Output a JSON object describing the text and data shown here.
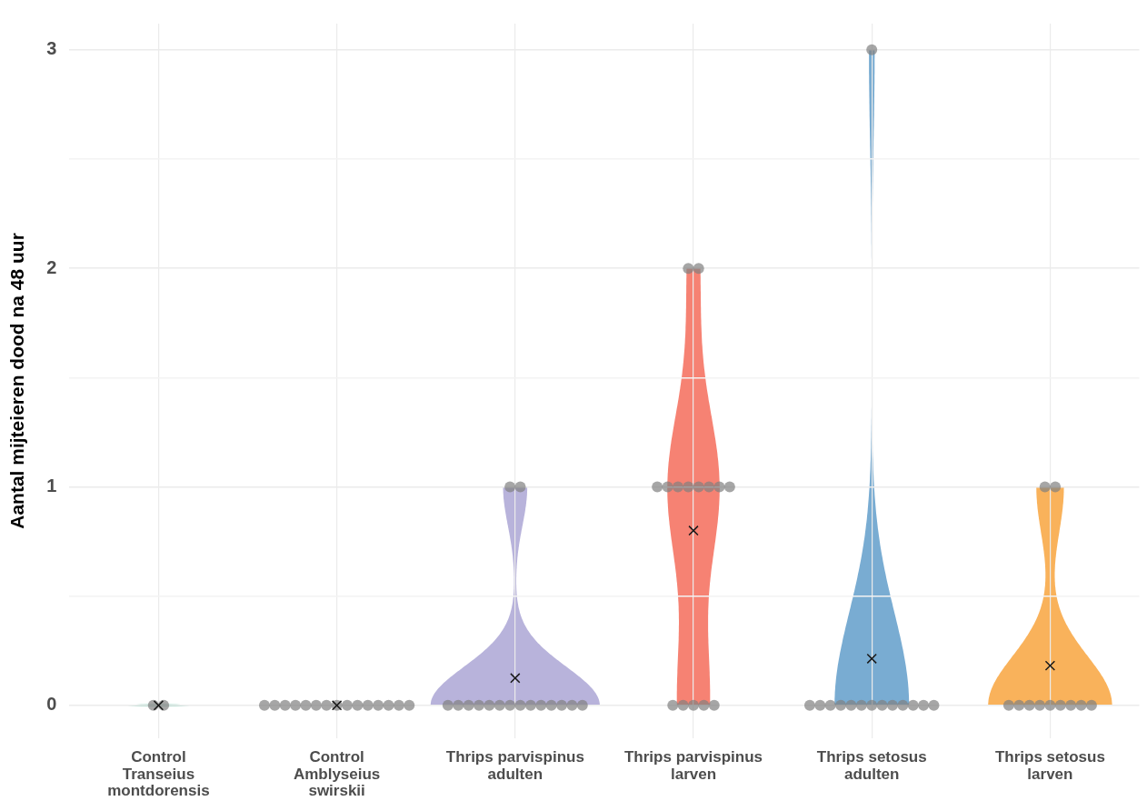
{
  "chart_data": {
    "type": "scatter",
    "ylabel": "Aantal mijteieren dood na 48 uur",
    "categories": [
      "Control\nTranseius\nmontdorensis",
      "Control\nAmblyseius\nswirskii",
      "Thrips parvispinus\nadulten",
      "Thrips parvispinus\nlarven",
      "Thrips setosus\nadulten",
      "Thrips setosus\nlarven"
    ],
    "colors": [
      "#66c2a5",
      null,
      "#b4afd9",
      "#f67b6b",
      "#72a8d0",
      "#f9ae52"
    ],
    "ylim": [
      -0.15,
      3.12
    ],
    "yticks": [
      0,
      {
        "value": 0.5,
        "label": null
      },
      1,
      {
        "value": 1.5,
        "label": null
      },
      2,
      {
        "value": 2.5,
        "label": null
      },
      3
    ],
    "grid": true,
    "legend": false,
    "series": [
      {
        "type": "scatter",
        "color": "#808080",
        "marker": "circle",
        "x": [
          "Control\nTranseius\nmontdorensis",
          "Control\nTranseius\nmontdorensis",
          "Control\nAmblyseius\nswirskii",
          "Control\nAmblyseius\nswirskii",
          "Control\nAmblyseius\nswirskii",
          "Control\nAmblyseius\nswirskii",
          "Control\nAmblyseius\nswirskii",
          "Control\nAmblyseius\nswirskii",
          "Control\nAmblyseius\nswirskii",
          "Control\nAmblyseius\nswirskii",
          "Control\nAmblyseius\nswirskii",
          "Control\nAmblyseius\nswirskii",
          "Control\nAmblyseius\nswirskii",
          "Control\nAmblyseius\nswirskii",
          "Control\nAmblyseius\nswirskii",
          "Control\nAmblyseius\nswirskii",
          "Control\nAmblyseius\nswirskii",
          "Thrips parvispinus\nadulten",
          "Thrips parvispinus\nadulten",
          "Thrips parvispinus\nadulten",
          "Thrips parvispinus\nadulten",
          "Thrips parvispinus\nadulten",
          "Thrips parvispinus\nadulten",
          "Thrips parvispinus\nadulten",
          "Thrips parvispinus\nadulten",
          "Thrips parvispinus\nadulten",
          "Thrips parvispinus\nadulten",
          "Thrips parvispinus\nadulten",
          "Thrips parvispinus\nadulten",
          "Thrips parvispinus\nadulten",
          "Thrips parvispinus\nadulten",
          "Thrips parvispinus\nadulten",
          "Thrips parvispinus\nadulten",
          "Thrips parvispinus\nlarven",
          "Thrips parvispinus\nlarven",
          "Thrips parvispinus\nlarven",
          "Thrips parvispinus\nlarven",
          "Thrips parvispinus\nlarven",
          "Thrips parvispinus\nlarven",
          "Thrips parvispinus\nlarven",
          "Thrips parvispinus\nlarven",
          "Thrips parvispinus\nlarven",
          "Thrips parvispinus\nlarven",
          "Thrips parvispinus\nlarven",
          "Thrips parvispinus\nlarven",
          "Thrips parvispinus\nlarven",
          "Thrips parvispinus\nlarven",
          "Thrips parvispinus\nlarven",
          "Thrips setosus\nadulten",
          "Thrips setosus\nadulten",
          "Thrips setosus\nadulten",
          "Thrips setosus\nadulten",
          "Thrips setosus\nadulten",
          "Thrips setosus\nadulten",
          "Thrips setosus\nadulten",
          "Thrips setosus\nadulten",
          "Thrips setosus\nadulten",
          "Thrips setosus\nadulten",
          "Thrips setosus\nadulten",
          "Thrips setosus\nadulten",
          "Thrips setosus\nadulten",
          "Thrips setosus\nadulten",
          "Thrips setosus\nlarven",
          "Thrips setosus\nlarven",
          "Thrips setosus\nlarven",
          "Thrips setosus\nlarven",
          "Thrips setosus\nlarven",
          "Thrips setosus\nlarven",
          "Thrips setosus\nlarven",
          "Thrips setosus\nlarven",
          "Thrips setosus\nlarven",
          "Thrips setosus\nlarven",
          "Thrips setosus\nlarven"
        ],
        "values": [
          0,
          0,
          0,
          0,
          0,
          0,
          0,
          0,
          0,
          0,
          0,
          0,
          0,
          0,
          0,
          0,
          0,
          0,
          0,
          0,
          0,
          0,
          0,
          0,
          0,
          0,
          0,
          0,
          0,
          0,
          0,
          1,
          1,
          0,
          0,
          0,
          0,
          0,
          1,
          1,
          1,
          1,
          1,
          1,
          1,
          1,
          2,
          2,
          0,
          0,
          0,
          0,
          0,
          0,
          0,
          0,
          0,
          0,
          0,
          0,
          0,
          3,
          0,
          0,
          0,
          0,
          0,
          0,
          0,
          0,
          0,
          1,
          1
        ]
      },
      {
        "type": "scatter",
        "color": "#1a1a1a",
        "marker": "cross",
        "x": [
          "Control\nTranseius\nmontdorensis",
          "Control\nAmblyseius\nswirskii",
          "Thrips parvispinus\nadulten",
          "Thrips parvispinus\nlarven",
          "Thrips setosus\nadulten",
          "Thrips setosus\nlarven"
        ],
        "values": [
          0,
          0,
          0.125,
          0.8,
          0.214,
          0.182
        ]
      }
    ]
  }
}
